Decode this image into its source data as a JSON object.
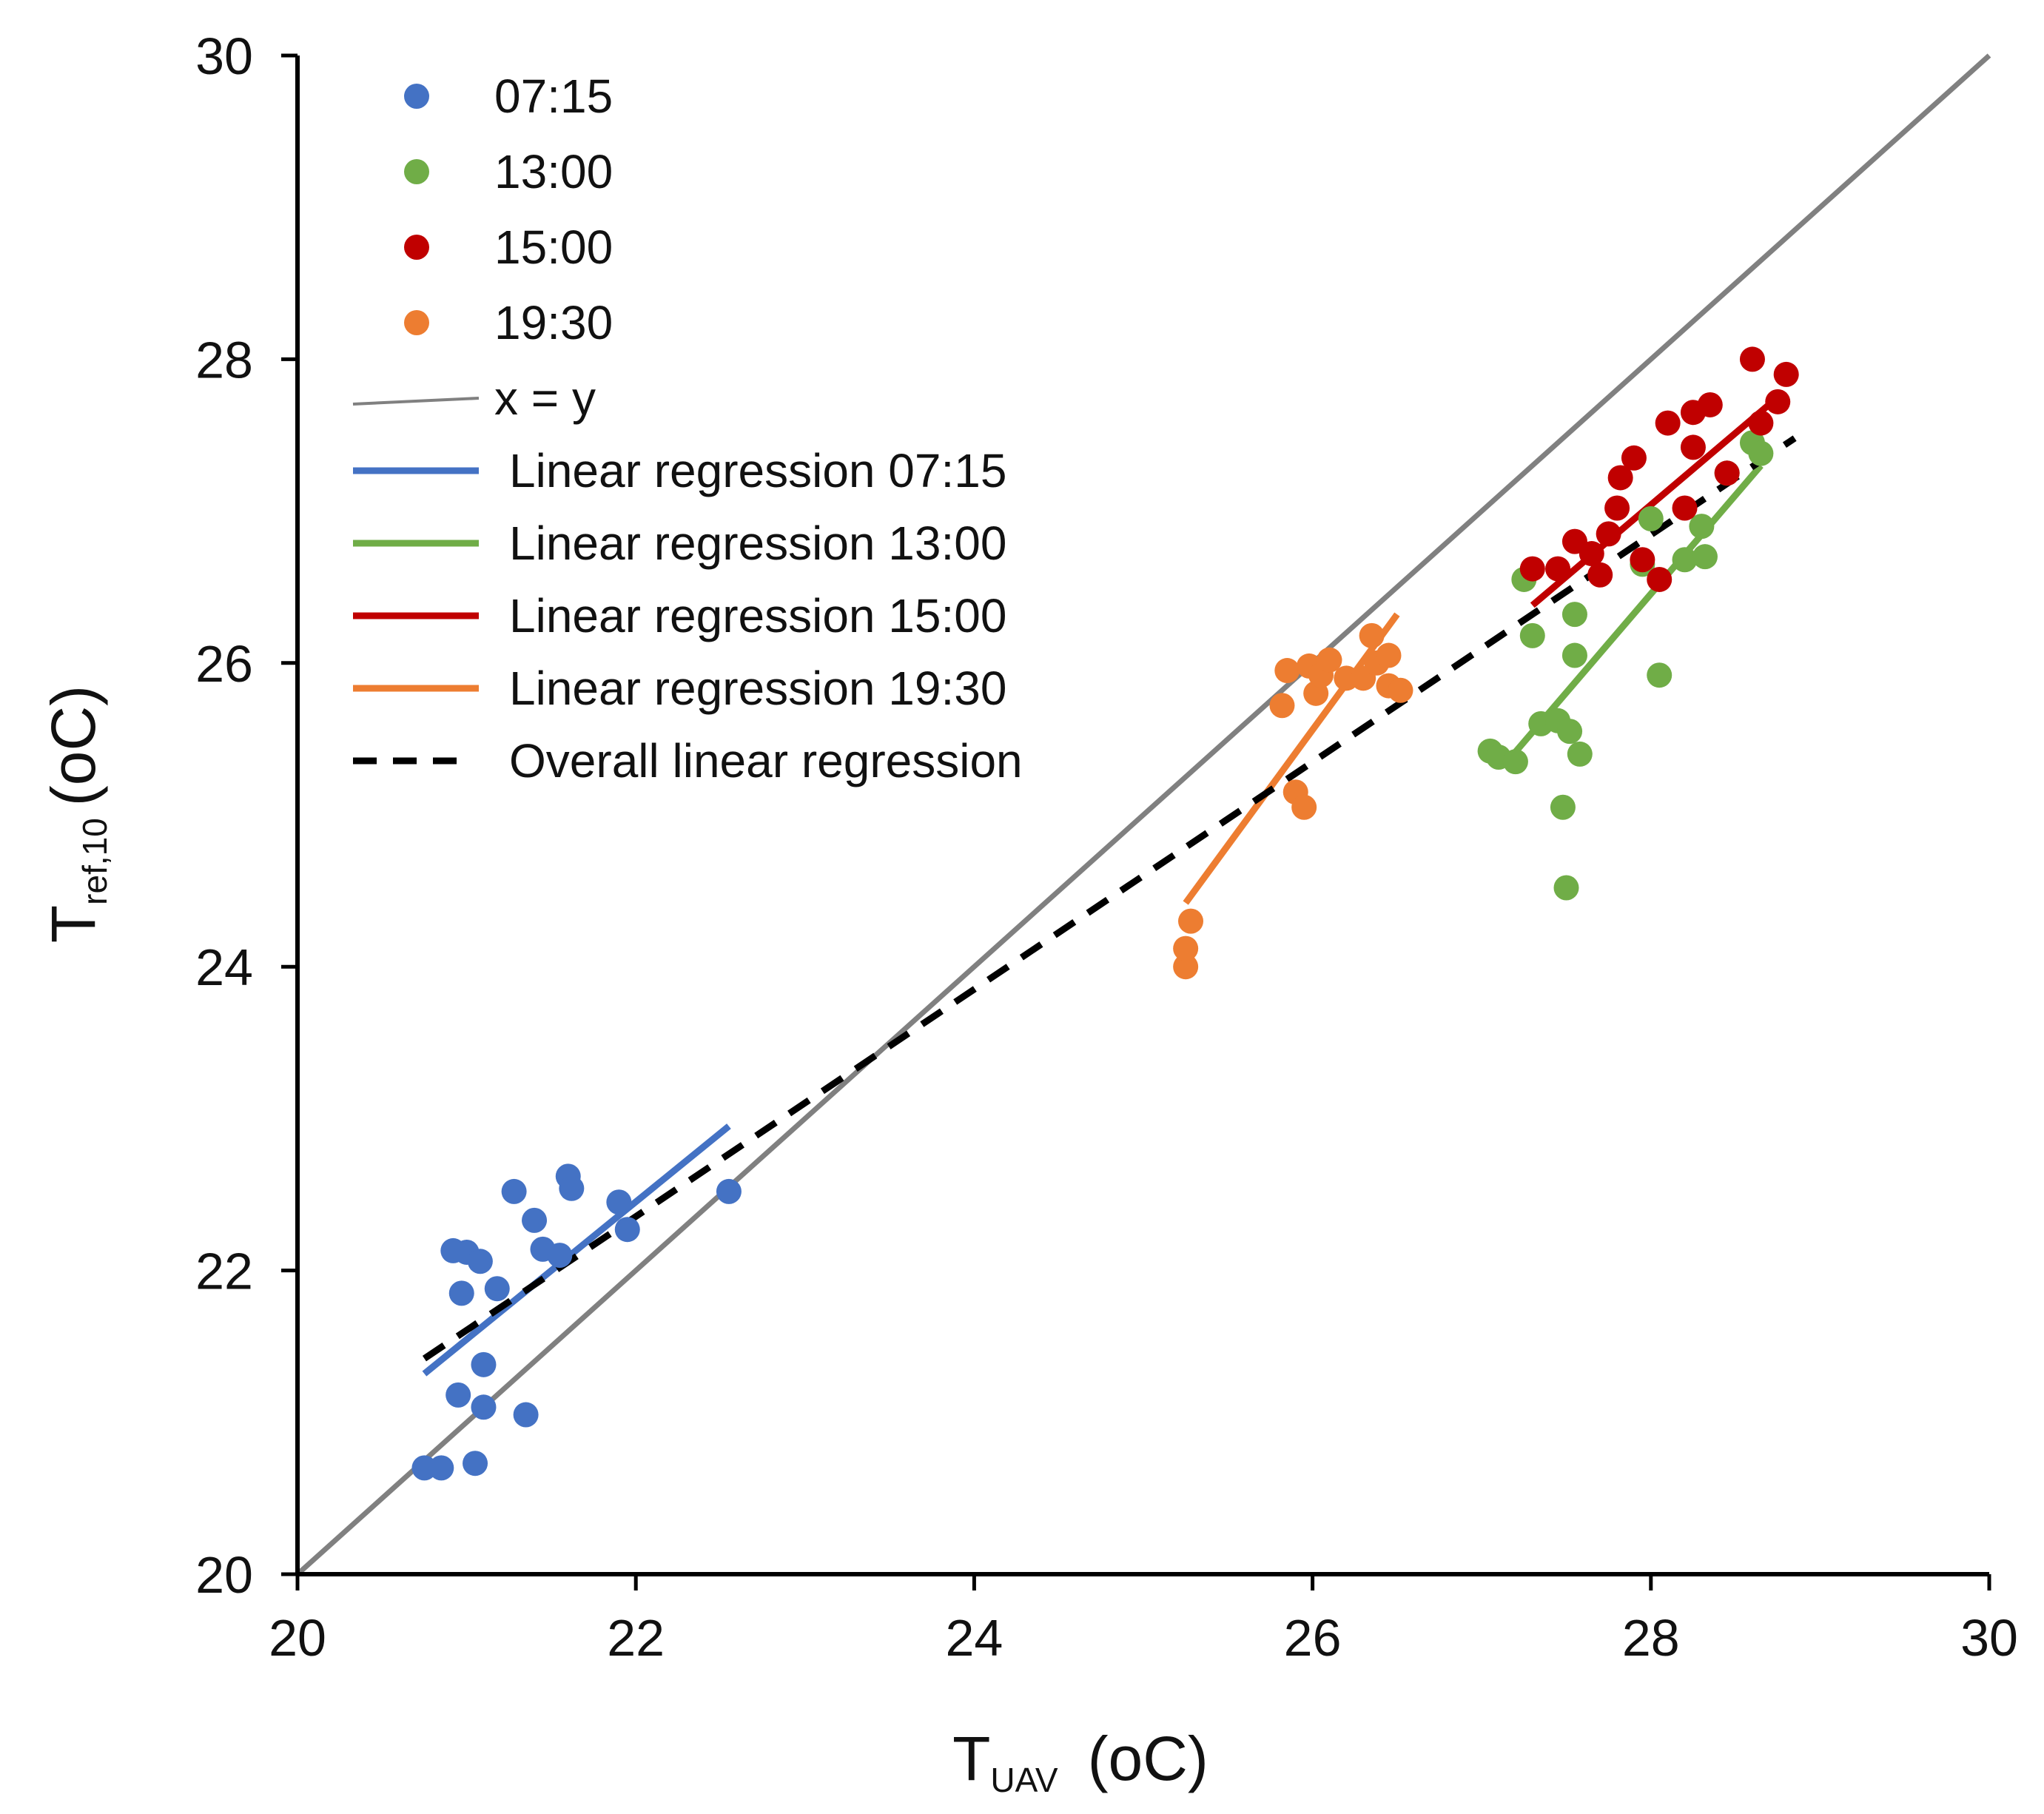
{
  "chart_data": {
    "type": "scatter",
    "title": "",
    "xlabel": {
      "main": "T",
      "sub": "UAV",
      "unit": "(oC)"
    },
    "ylabel": {
      "main": "T",
      "sub": "ref,10",
      "unit": "(oC)"
    },
    "xlim": [
      20,
      30
    ],
    "ylim": [
      20,
      30
    ],
    "xticks": [
      "20",
      "22",
      "24",
      "26",
      "28",
      "30"
    ],
    "yticks": [
      "20",
      "22",
      "24",
      "26",
      "28",
      "30"
    ],
    "grid": false,
    "legend_position": "top-left",
    "series": [
      {
        "name": "07:15",
        "color": "#4472C4",
        "points": [
          [
            20.75,
            20.7
          ],
          [
            20.85,
            20.7
          ],
          [
            21.05,
            20.73
          ],
          [
            20.95,
            21.18
          ],
          [
            21.1,
            21.1
          ],
          [
            21.1,
            21.38
          ],
          [
            21.35,
            21.05
          ],
          [
            20.92,
            22.13
          ],
          [
            21.0,
            22.12
          ],
          [
            21.08,
            22.06
          ],
          [
            20.97,
            21.85
          ],
          [
            21.18,
            21.88
          ],
          [
            21.28,
            22.52
          ],
          [
            21.4,
            22.33
          ],
          [
            21.45,
            22.14
          ],
          [
            21.55,
            22.1
          ],
          [
            21.6,
            22.62
          ],
          [
            21.62,
            22.54
          ],
          [
            21.9,
            22.45
          ],
          [
            21.95,
            22.27
          ],
          [
            22.55,
            22.52
          ]
        ]
      },
      {
        "name": "13:00",
        "color": "#70AD47",
        "points": [
          [
            27.05,
            25.42
          ],
          [
            27.1,
            25.38
          ],
          [
            27.2,
            25.35
          ],
          [
            27.25,
            26.55
          ],
          [
            27.3,
            26.18
          ],
          [
            27.35,
            25.6
          ],
          [
            27.45,
            25.62
          ],
          [
            27.48,
            25.05
          ],
          [
            27.5,
            24.52
          ],
          [
            27.52,
            25.55
          ],
          [
            27.55,
            26.05
          ],
          [
            27.55,
            26.32
          ],
          [
            27.58,
            25.4
          ],
          [
            27.95,
            26.65
          ],
          [
            28.0,
            26.95
          ],
          [
            28.05,
            25.92
          ],
          [
            28.2,
            26.68
          ],
          [
            28.3,
            26.9
          ],
          [
            28.32,
            26.7
          ],
          [
            28.45,
            27.25
          ],
          [
            28.6,
            27.45
          ],
          [
            28.65,
            27.38
          ]
        ]
      },
      {
        "name": "15:00",
        "color": "#C00000",
        "points": [
          [
            27.3,
            26.62
          ],
          [
            27.45,
            26.62
          ],
          [
            27.55,
            26.8
          ],
          [
            27.65,
            26.72
          ],
          [
            27.7,
            26.58
          ],
          [
            27.75,
            26.85
          ],
          [
            27.8,
            27.02
          ],
          [
            27.82,
            27.22
          ],
          [
            27.9,
            27.35
          ],
          [
            27.95,
            26.68
          ],
          [
            28.05,
            26.55
          ],
          [
            28.1,
            27.58
          ],
          [
            28.2,
            27.02
          ],
          [
            28.25,
            27.42
          ],
          [
            28.25,
            27.65
          ],
          [
            28.35,
            27.7
          ],
          [
            28.45,
            27.25
          ],
          [
            28.6,
            28.0
          ],
          [
            28.65,
            27.58
          ],
          [
            28.75,
            27.72
          ],
          [
            28.8,
            27.9
          ]
        ]
      },
      {
        "name": "19:30",
        "color": "#ED7D31",
        "points": [
          [
            25.25,
            24.0
          ],
          [
            25.25,
            24.12
          ],
          [
            25.28,
            24.3
          ],
          [
            25.82,
            25.72
          ],
          [
            25.85,
            25.95
          ],
          [
            25.9,
            25.15
          ],
          [
            25.95,
            25.05
          ],
          [
            25.98,
            25.98
          ],
          [
            26.02,
            25.8
          ],
          [
            26.05,
            25.92
          ],
          [
            26.1,
            26.02
          ],
          [
            26.2,
            25.9
          ],
          [
            26.3,
            25.9
          ],
          [
            26.35,
            26.18
          ],
          [
            26.38,
            26.0
          ],
          [
            26.45,
            25.85
          ],
          [
            26.45,
            26.05
          ],
          [
            26.52,
            25.82
          ]
        ]
      }
    ],
    "lines": [
      {
        "name": "x = y",
        "color": "#808080",
        "style": "solid",
        "from": [
          20,
          20
        ],
        "to": [
          30,
          30
        ]
      },
      {
        "name": "Linear regression 07:15",
        "color": "#4472C4",
        "style": "solid",
        "from": [
          20.75,
          21.32
        ],
        "to": [
          22.55,
          22.95
        ]
      },
      {
        "name": "Linear regression 13:00",
        "color": "#70AD47",
        "style": "solid",
        "from": [
          27.15,
          25.35
        ],
        "to": [
          28.65,
          27.3
        ]
      },
      {
        "name": "Linear regression 15:00",
        "color": "#C00000",
        "style": "solid",
        "from": [
          27.3,
          26.38
        ],
        "to": [
          28.75,
          27.75
        ]
      },
      {
        "name": "Linear regression 19:30",
        "color": "#ED7D31",
        "style": "solid",
        "from": [
          25.25,
          24.42
        ],
        "to": [
          26.5,
          26.32
        ]
      },
      {
        "name": "Overall linear regression",
        "color": "#000000",
        "style": "dashed",
        "from": [
          20.75,
          21.42
        ],
        "to": [
          28.85,
          27.48
        ]
      }
    ]
  }
}
